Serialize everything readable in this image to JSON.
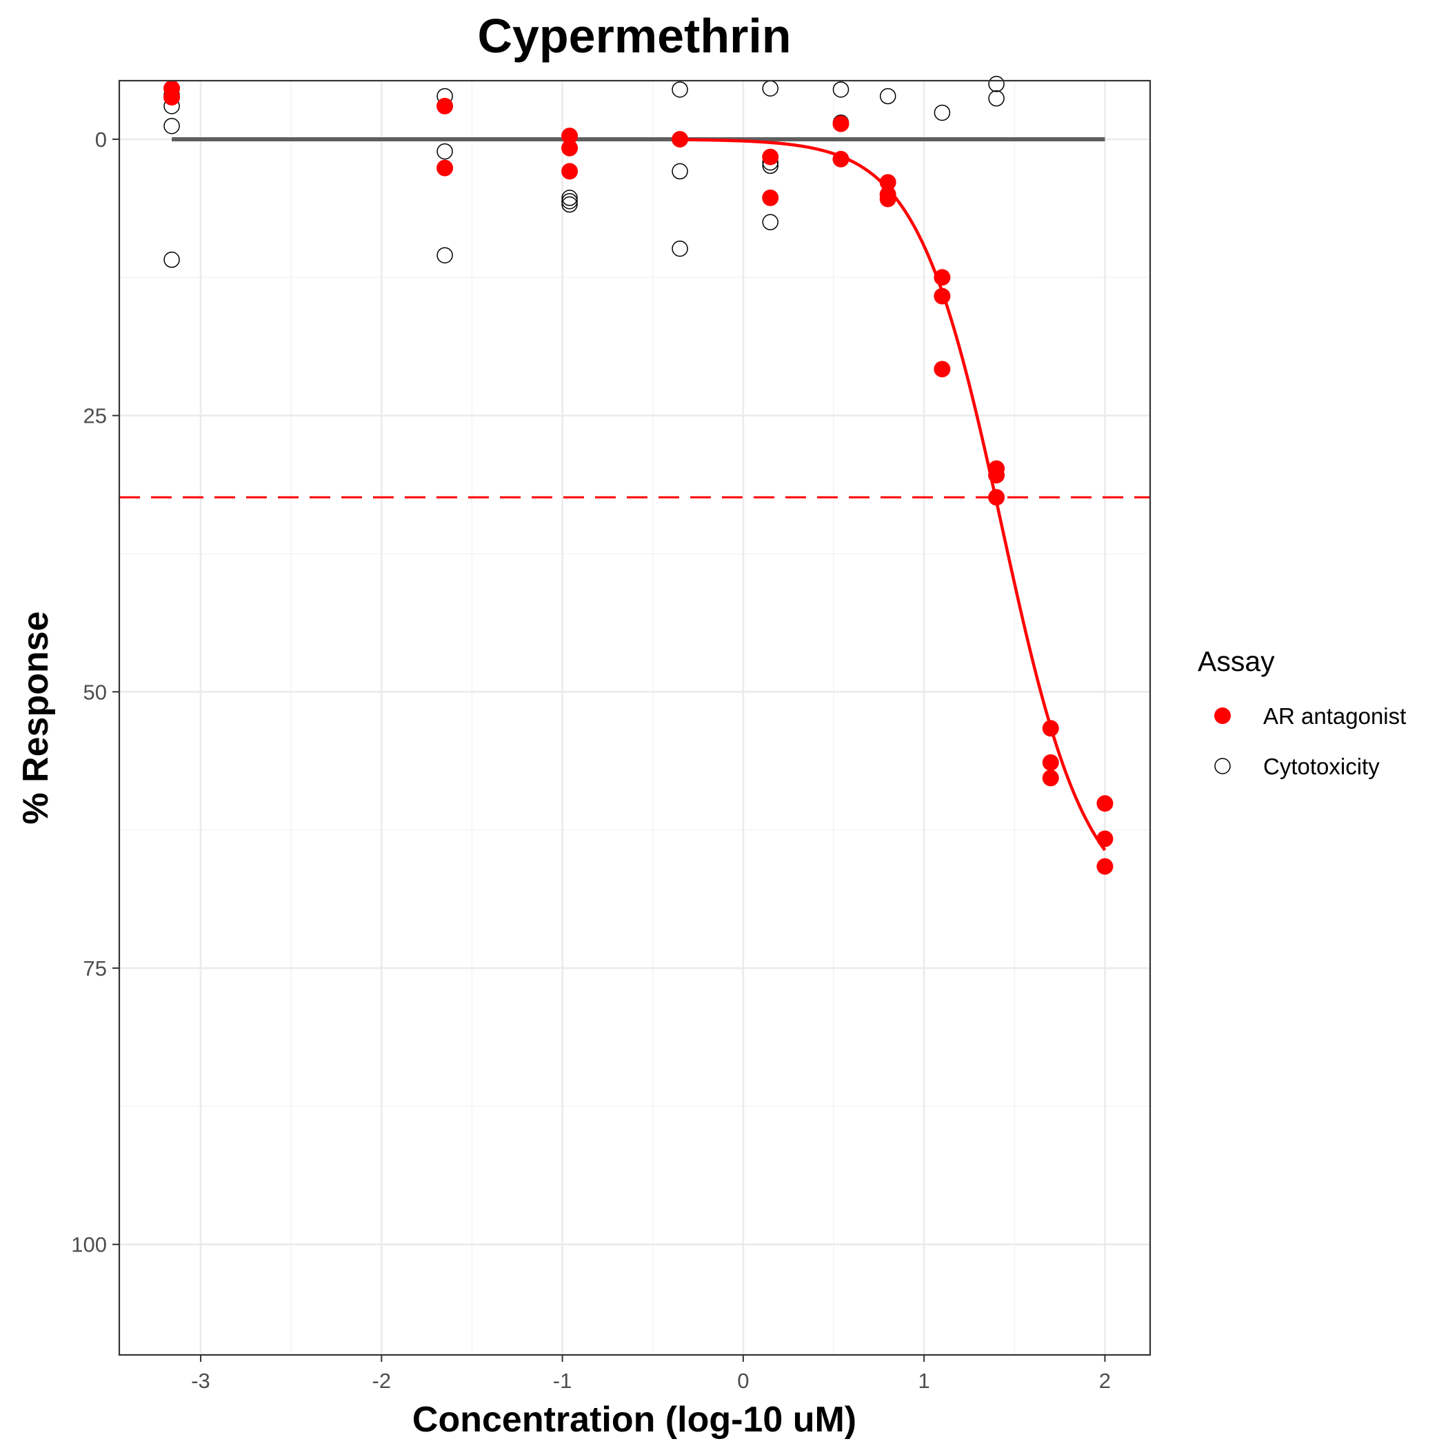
{
  "chart_data": {
    "type": "scatter",
    "title": "Cypermethrin",
    "xlabel": "Concentration (log-10 uM)",
    "ylabel": "% Response",
    "xlim": [
      -3.45,
      2.25
    ],
    "ylim": [
      110,
      -5.3
    ],
    "y_reversed": true,
    "x_ticks": [
      -3,
      -2,
      -1,
      0,
      1,
      2
    ],
    "x_tick_labels": [
      "-3",
      "-2",
      "-1",
      "0",
      "1",
      "2"
    ],
    "y_ticks": [
      0,
      25,
      50,
      75,
      100
    ],
    "y_tick_labels": [
      "0",
      "25",
      "50",
      "75",
      "100"
    ],
    "grid": true,
    "legend": {
      "title": "Assay",
      "position": "right",
      "entries": [
        {
          "label": "AR antagonist",
          "marker": "filled-circle",
          "color": "#ff0000"
        },
        {
          "label": "Cytotoxicity",
          "marker": "open-circle",
          "color": "#000000"
        }
      ]
    },
    "series": [
      {
        "name": "AR antagonist",
        "color": "#ff0000",
        "marker": "filled",
        "points": [
          [
            -3.16,
            -4.6
          ],
          [
            -3.16,
            -3.8
          ],
          [
            -1.65,
            -3.0
          ],
          [
            -1.65,
            2.6
          ],
          [
            -0.96,
            -0.3
          ],
          [
            -0.96,
            0.8
          ],
          [
            -0.96,
            2.9
          ],
          [
            -0.35,
            0.0
          ],
          [
            0.15,
            1.6
          ],
          [
            0.15,
            5.3
          ],
          [
            0.54,
            -1.4
          ],
          [
            0.54,
            1.8
          ],
          [
            0.8,
            3.9
          ],
          [
            0.8,
            5.0
          ],
          [
            0.8,
            5.4
          ],
          [
            1.1,
            12.5
          ],
          [
            1.1,
            14.2
          ],
          [
            1.1,
            20.8
          ],
          [
            1.4,
            29.8
          ],
          [
            1.4,
            30.4
          ],
          [
            1.4,
            32.4
          ],
          [
            1.7,
            53.3
          ],
          [
            1.7,
            56.4
          ],
          [
            1.7,
            57.8
          ],
          [
            2.0,
            60.1
          ],
          [
            2.0,
            63.3
          ],
          [
            2.0,
            65.8
          ]
        ]
      },
      {
        "name": "Cytotoxicity",
        "color": "#000000",
        "marker": "open",
        "points": [
          [
            -3.16,
            -4.0
          ],
          [
            -3.16,
            -3.0
          ],
          [
            -3.16,
            -1.2
          ],
          [
            -3.16,
            10.9
          ],
          [
            -1.65,
            -3.9
          ],
          [
            -1.65,
            1.1
          ],
          [
            -1.65,
            10.5
          ],
          [
            -0.96,
            5.3
          ],
          [
            -0.96,
            5.6
          ],
          [
            -0.96,
            5.9
          ],
          [
            -0.35,
            -4.5
          ],
          [
            -0.35,
            2.9
          ],
          [
            -0.35,
            9.9
          ],
          [
            0.15,
            -4.6
          ],
          [
            0.15,
            2.1
          ],
          [
            0.15,
            2.4
          ],
          [
            0.15,
            7.5
          ],
          [
            0.54,
            -4.5
          ],
          [
            0.54,
            -1.5
          ],
          [
            0.8,
            -3.9
          ],
          [
            1.1,
            -2.4
          ],
          [
            1.4,
            -5.0
          ],
          [
            1.4,
            -3.7
          ]
        ]
      }
    ],
    "baseline": {
      "color": "#5f5f5f",
      "y": 0,
      "x_range": [
        -3.16,
        2.0
      ]
    },
    "cutoff_line": {
      "color": "#ff0000",
      "style": "dashed",
      "y": 32.4
    },
    "fit_curve": {
      "color": "#ff0000",
      "model": "hill",
      "top": 70,
      "ac50_log": 1.43,
      "hill_slope": 1.85,
      "x_range": [
        -0.35,
        2.0
      ]
    }
  }
}
